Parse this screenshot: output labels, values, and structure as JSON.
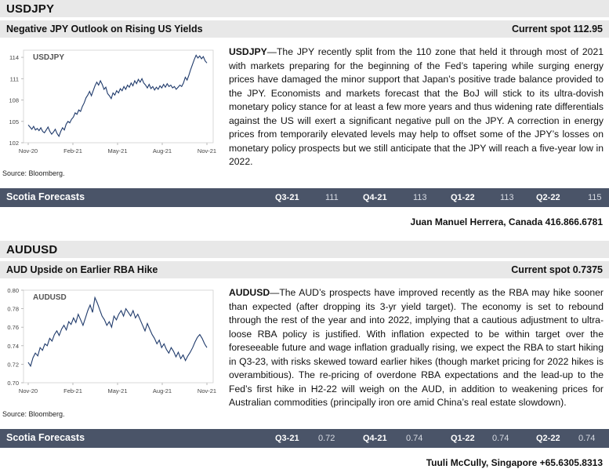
{
  "usdjpy": {
    "title": "USDJPY",
    "headline": "Negative JPY Outlook on Rising US Yields",
    "spot": "Current spot 112.95",
    "source": "Source: Bloomberg.",
    "lead": "USDJPY",
    "text": "—The JPY recently split from the 110 zone that held it through most of 2021 with markets preparing for the beginning of the Fed’s tapering while surging energy prices have damaged the minor support that Japan’s positive trade balance provided to the JPY. Economists and markets forecast that the BoJ will stick to its ultra-dovish monetary policy stance for at least a few more years and thus widening rate differentials against the US will exert a significant negative pull on the JPY. A correction in energy prices from temporarily elevated levels may help to offset some of the JPY’s losses on monetary policy prospects but we still anticipate that the JPY will reach a five-year low in 2022.",
    "forecast_label": "Scotia Forecasts",
    "forecasts": [
      {
        "q": "Q3-21",
        "v": "111"
      },
      {
        "q": "Q4-21",
        "v": "113"
      },
      {
        "q": "Q1-22",
        "v": "113"
      },
      {
        "q": "Q2-22",
        "v": "115"
      }
    ],
    "analyst": "Juan Manuel Herrera, Canada 416.866.6781"
  },
  "audusd": {
    "title": "AUDUSD",
    "headline": "AUD Upside on Earlier RBA Hike",
    "spot": "Current spot 0.7375",
    "source": "Source: Bloomberg.",
    "lead": "AUDUSD",
    "text": "—The AUD’s prospects have improved recently as the RBA may hike sooner than expected (after dropping its 3-yr yield target). The economy is set to rebound through the rest of the year and into 2022, implying that a cautious adjustment to ultra-loose RBA policy is justified. With inflation expected to be within target over the foreseeable future and wage inflation gradually rising, we expect the RBA to start hiking in Q3-23, with risks skewed toward earlier hikes (though market pricing for 2022 hikes is overambitious). The re-pricing of overdone RBA expectations and the lead-up to the Fed’s first hike in H2-22 will weigh on the AUD, in addition to weakening prices for Australian commodities (principally iron ore amid China’s real estate slowdown).",
    "forecast_label": "Scotia Forecasts",
    "forecasts": [
      {
        "q": "Q3-21",
        "v": "0.72"
      },
      {
        "q": "Q4-21",
        "v": "0.74"
      },
      {
        "q": "Q1-22",
        "v": "0.74"
      },
      {
        "q": "Q2-22",
        "v": "0.74"
      }
    ],
    "analyst": "Tuuli McCully, Singapore +65.6305.8313"
  },
  "chart_data": [
    {
      "type": "line",
      "title": "USDJPY",
      "x_ticks": [
        "Nov-20",
        "Feb-21",
        "May-21",
        "Aug-21",
        "Nov-21"
      ],
      "y_ticks": [
        102,
        105,
        108,
        111,
        114
      ],
      "ylim": [
        102,
        115
      ],
      "series": [
        {
          "values": [
            104.5,
            104.2,
            103.9,
            104.3,
            103.8,
            104.0,
            103.7,
            104.1,
            103.6,
            103.4,
            103.8,
            104.2,
            103.6,
            103.2,
            103.5,
            103.9,
            103.3,
            102.9,
            103.6,
            104.1,
            103.8,
            104.6,
            105.0,
            104.8,
            105.3,
            105.6,
            106.2,
            106.0,
            106.6,
            106.4,
            107.1,
            107.6,
            108.3,
            108.7,
            109.2,
            108.6,
            109.3,
            110.0,
            110.5,
            110.1,
            110.7,
            110.2,
            109.5,
            109.8,
            108.9,
            108.6,
            108.2,
            109.0,
            108.7,
            109.3,
            109.0,
            109.6,
            109.3,
            109.9,
            109.5,
            110.1,
            109.8,
            110.4,
            110.0,
            110.7,
            110.3,
            110.9,
            110.5,
            111.0,
            110.4,
            110.1,
            109.7,
            110.2,
            109.6,
            109.9,
            109.4,
            109.8,
            109.5,
            110.0,
            109.7,
            110.2,
            109.8,
            110.3,
            109.9,
            110.1,
            109.7,
            109.9,
            109.5,
            109.8,
            110.1,
            109.9,
            110.4,
            111.2,
            110.8,
            111.5,
            112.3,
            113.0,
            113.7,
            114.3,
            113.9,
            114.2,
            113.8,
            114.1,
            113.5,
            113.2
          ]
        }
      ]
    },
    {
      "type": "line",
      "title": "AUDUSD",
      "x_ticks": [
        "Nov-20",
        "Feb-21",
        "May-21",
        "Aug-21",
        "Nov-21"
      ],
      "y_ticks": [
        0.7,
        0.72,
        0.74,
        0.76,
        0.78,
        0.8
      ],
      "ylim": [
        0.7,
        0.8
      ],
      "series": [
        {
          "values": [
            0.722,
            0.718,
            0.727,
            0.732,
            0.729,
            0.738,
            0.735,
            0.742,
            0.74,
            0.748,
            0.745,
            0.752,
            0.756,
            0.751,
            0.758,
            0.762,
            0.757,
            0.766,
            0.763,
            0.77,
            0.765,
            0.774,
            0.768,
            0.762,
            0.77,
            0.778,
            0.784,
            0.776,
            0.792,
            0.786,
            0.779,
            0.772,
            0.768,
            0.762,
            0.766,
            0.76,
            0.772,
            0.768,
            0.774,
            0.778,
            0.772,
            0.78,
            0.776,
            0.772,
            0.778,
            0.77,
            0.774,
            0.768,
            0.762,
            0.756,
            0.764,
            0.758,
            0.752,
            0.748,
            0.742,
            0.746,
            0.738,
            0.742,
            0.736,
            0.732,
            0.738,
            0.734,
            0.728,
            0.733,
            0.726,
            0.73,
            0.724,
            0.729,
            0.733,
            0.738,
            0.744,
            0.749,
            0.752,
            0.748,
            0.742,
            0.738
          ]
        }
      ]
    }
  ]
}
